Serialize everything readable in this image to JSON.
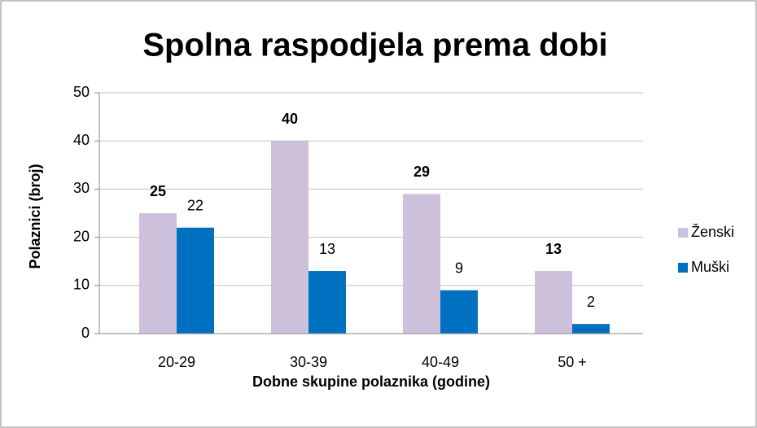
{
  "chart_data": {
    "type": "bar",
    "title": "Spolna raspodjela prema dobi",
    "x_label": "Dobne skupine polaznika (godine)",
    "y_label": "Polaznici (broj)",
    "categories": [
      "20-29",
      "30-39",
      "40-49",
      "50 +"
    ],
    "series": [
      {
        "name": "Ženski",
        "color": "#ccc0da",
        "values": [
          25,
          40,
          29,
          13
        ]
      },
      {
        "name": "Muški",
        "color": "#0070c0",
        "values": [
          22,
          13,
          9,
          2
        ]
      }
    ],
    "ylim": [
      0,
      50
    ],
    "yticks": [
      0,
      10,
      20,
      30,
      40,
      50
    ],
    "grid": true,
    "legend": "right"
  }
}
